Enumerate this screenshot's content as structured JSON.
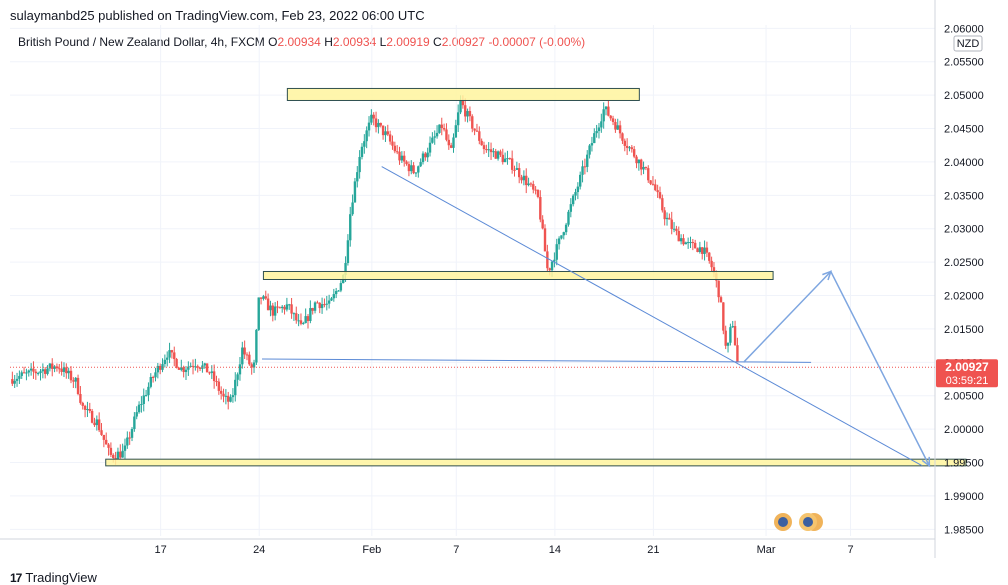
{
  "header": {
    "publish_line": "sulaymanbd25 published on TradingView.com, Feb 23, 2022 06:00 UTC"
  },
  "symbol_bar": {
    "name": "British Pound / New Zealand Dollar, 4h, FXCM",
    "open_label": "O",
    "open": "2.00934",
    "high_label": "H",
    "high": "2.00934",
    "low_label": "L",
    "low": "2.00919",
    "close_label": "C",
    "close": "2.00927",
    "change": "-0.00007 (-0.00%)"
  },
  "footer": {
    "brand": "TradingView"
  },
  "colors": {
    "up": "#26a69a",
    "down": "#ef5350",
    "zone_fill": "#fff59d",
    "zone_border": "#2f4f4f",
    "trend_line": "#5b8ad6",
    "projection": "#7ea6e0",
    "price_tag": "#ef5350"
  },
  "chart_data": {
    "type": "candlestick",
    "currency": "NZD",
    "y_ticks": [
      "2.06000",
      "2.05500",
      "2.05000",
      "2.04500",
      "2.04000",
      "2.03500",
      "2.03000",
      "2.02500",
      "2.02000",
      "2.01500",
      "2.01000",
      "2.00500",
      "2.00000",
      "1.99500",
      "1.99000",
      "1.98500"
    ],
    "ylim": [
      1.984,
      2.0605
    ],
    "x_ticks": [
      {
        "label": "17",
        "t": 1.0
      },
      {
        "label": "24",
        "t": 8.0
      },
      {
        "label": "Feb",
        "t": 16.0
      },
      {
        "label": "7",
        "t": 22.0
      },
      {
        "label": "14",
        "t": 29.0
      },
      {
        "label": "21",
        "t": 36.0
      },
      {
        "label": "Mar",
        "t": 44.0
      },
      {
        "label": "7",
        "t": 50.0
      }
    ],
    "xlim": [
      -9.7,
      56.0
    ],
    "current_price": "2.00927",
    "countdown": "03:59:21",
    "current_value": 2.00927,
    "close_path": [
      [
        -9.7,
        2.0075
      ],
      [
        -8.0,
        2.0085
      ],
      [
        -6.3,
        2.0095
      ],
      [
        -5.0,
        2.007
      ],
      [
        -4.5,
        2.003
      ],
      [
        -3.5,
        2.001
      ],
      [
        -2.6,
        1.996
      ],
      [
        -1.6,
        1.9965
      ],
      [
        -0.6,
        2.003
      ],
      [
        0.5,
        2.008
      ],
      [
        1.5,
        2.0115
      ],
      [
        2.5,
        2.009
      ],
      [
        3.5,
        2.01
      ],
      [
        4.5,
        2.0085
      ],
      [
        5.5,
        2.0045
      ],
      [
        6.0,
        2.004
      ],
      [
        6.8,
        2.012
      ],
      [
        7.6,
        2.0085
      ],
      [
        8.0,
        2.02
      ],
      [
        9.0,
        2.0175
      ],
      [
        10.0,
        2.0185
      ],
      [
        11.0,
        2.015
      ],
      [
        12.0,
        2.019
      ],
      [
        13.0,
        2.0185
      ],
      [
        14.0,
        2.023
      ],
      [
        14.5,
        2.033
      ],
      [
        15.2,
        2.042
      ],
      [
        16.0,
        2.0465
      ],
      [
        17.0,
        2.044
      ],
      [
        18.0,
        2.0405
      ],
      [
        19.0,
        2.0385
      ],
      [
        20.0,
        2.042
      ],
      [
        21.0,
        2.0455
      ],
      [
        21.6,
        2.041
      ],
      [
        22.3,
        2.049
      ],
      [
        23.0,
        2.046
      ],
      [
        24.0,
        2.042
      ],
      [
        25.0,
        2.041
      ],
      [
        26.0,
        2.0395
      ],
      [
        27.0,
        2.037
      ],
      [
        27.8,
        2.0345
      ],
      [
        28.5,
        2.0235
      ],
      [
        29.3,
        2.028
      ],
      [
        30.0,
        2.0325
      ],
      [
        30.8,
        2.0375
      ],
      [
        31.8,
        2.044
      ],
      [
        32.5,
        2.048
      ],
      [
        33.2,
        2.046
      ],
      [
        34.0,
        2.043
      ],
      [
        35.0,
        2.04
      ],
      [
        36.0,
        2.0365
      ],
      [
        36.8,
        2.032
      ],
      [
        37.5,
        2.0295
      ],
      [
        38.5,
        2.0275
      ],
      [
        39.5,
        2.027
      ],
      [
        40.2,
        2.024
      ],
      [
        40.7,
        2.02
      ],
      [
        41.2,
        2.011
      ],
      [
        41.6,
        2.0165
      ],
      [
        42.0,
        2.0093
      ]
    ],
    "drawings": {
      "zones": [
        {
          "name": "resistance-zone",
          "t1": 10.0,
          "t2": 35.0,
          "low": 2.0492,
          "high": 2.051
        },
        {
          "name": "mid-zone",
          "t1": 8.3,
          "t2": 44.5,
          "low": 2.0224,
          "high": 2.0236
        },
        {
          "name": "support-zone",
          "t1": -2.9,
          "t2": 58.2,
          "low": 1.9945,
          "high": 1.9955
        }
      ],
      "lines": [
        {
          "name": "trend-line",
          "t1": 16.7,
          "v1": 2.0393,
          "t2": 55.1,
          "v2": 1.9945
        },
        {
          "name": "horizontal-line",
          "t1": 8.2,
          "v1": 2.0105,
          "t2": 47.2,
          "v2": 2.01
        }
      ],
      "projection": [
        [
          42.4,
          2.01
        ],
        [
          48.6,
          2.0236
        ],
        [
          55.6,
          1.9945
        ]
      ]
    }
  }
}
